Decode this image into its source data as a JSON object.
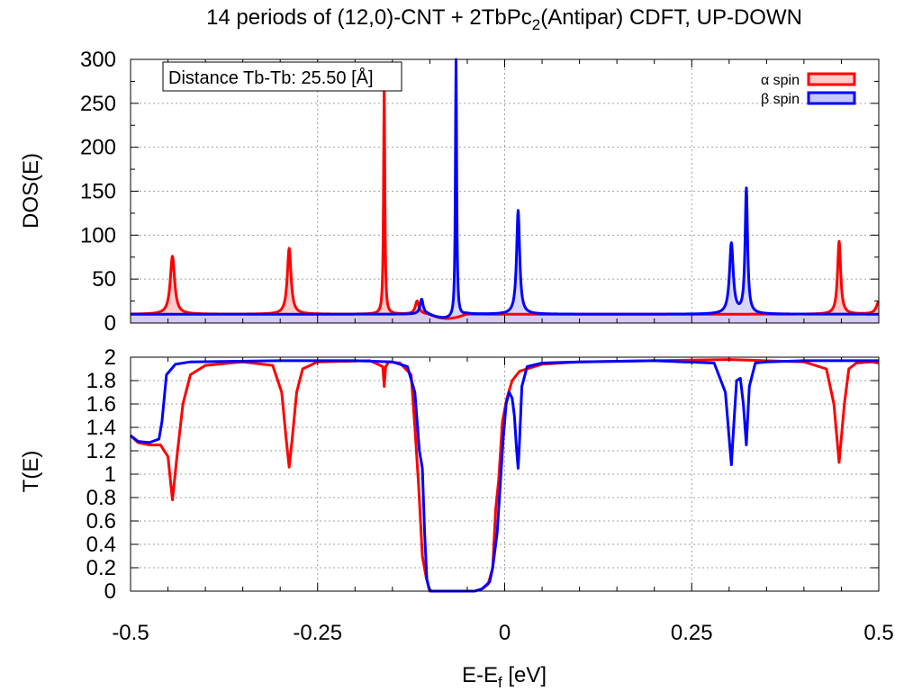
{
  "chart_data": [
    {
      "panel": "top",
      "type": "area",
      "title_parts": {
        "pre": "14 periods of (12,0)-CNT + 2TbPc",
        "sub": "2",
        "post": "(Antipar) CDFT, UP-DOWN"
      },
      "ylabel": "DOS(E)",
      "xlim": [
        -0.5,
        0.5
      ],
      "ylim": [
        0,
        300
      ],
      "yticks": [
        "0",
        "50",
        "100",
        "150",
        "200",
        "250",
        "300"
      ],
      "grid": true,
      "legend_position": "top-right",
      "annotation": "Distance Tb-Tb: 25.50 [Å]",
      "baseline": 10,
      "series": [
        {
          "name": "α spin",
          "color": "#ff0000",
          "fill": "#ffcccc",
          "peaks": [
            {
              "x": -0.444,
              "h": 66,
              "w": 0.0035
            },
            {
              "x": -0.288,
              "h": 75,
              "w": 0.003
            },
            {
              "x": -0.161,
              "h": 260,
              "w": 0.001
            },
            {
              "x": -0.117,
              "h": 15,
              "w": 0.003
            },
            {
              "x": 0.447,
              "h": 83,
              "w": 0.0025
            },
            {
              "x": 0.5,
              "h": 14,
              "w": 0.004
            }
          ],
          "gap": [
            -0.103,
            -0.02
          ]
        },
        {
          "name": "β spin",
          "color": "#0000ff",
          "fill": "#c8c8ff",
          "peaks": [
            {
              "x": -0.111,
              "h": 17,
              "w": 0.0025
            },
            {
              "x": -0.065,
              "h": 295,
              "w": 0.001
            },
            {
              "x": 0.018,
              "h": 118,
              "w": 0.0025
            },
            {
              "x": 0.303,
              "h": 80,
              "w": 0.003
            },
            {
              "x": 0.323,
              "h": 142,
              "w": 0.002
            }
          ],
          "gap": [
            -0.103,
            -0.02
          ]
        }
      ]
    },
    {
      "panel": "bottom",
      "type": "line",
      "ylabel": "T(E)",
      "xlabel_parts": {
        "pre": "E-E",
        "sub": "f",
        "post": " [eV]"
      },
      "xlim": [
        -0.5,
        0.5
      ],
      "ylim": [
        0,
        2
      ],
      "xticks": [
        "-0.5",
        "-0.25",
        "0",
        "0.25",
        "0.5"
      ],
      "yticks": [
        "0",
        "0.2",
        "0.4",
        "0.6",
        "0.8",
        "1",
        "1.2",
        "1.4",
        "1.6",
        "1.8",
        "2"
      ],
      "grid": true,
      "series": [
        {
          "name": "α spin",
          "color": "#ff0000",
          "x": [
            -0.5,
            -0.49,
            -0.475,
            -0.46,
            -0.45,
            -0.444,
            -0.438,
            -0.43,
            -0.42,
            -0.4,
            -0.35,
            -0.31,
            -0.298,
            -0.292,
            -0.288,
            -0.284,
            -0.278,
            -0.27,
            -0.25,
            -0.18,
            -0.163,
            -0.161,
            -0.159,
            -0.155,
            -0.14,
            -0.125,
            -0.12,
            -0.115,
            -0.11,
            -0.105,
            -0.1,
            -0.098,
            -0.09,
            -0.06,
            -0.04,
            -0.03,
            -0.022,
            -0.016,
            -0.012,
            -0.008,
            -0.003,
            0.003,
            0.01,
            0.02,
            0.05,
            0.1,
            0.2,
            0.3,
            0.4,
            0.43,
            0.44,
            0.447,
            0.454,
            0.46,
            0.47,
            0.49,
            0.5
          ],
          "y": [
            1.33,
            1.27,
            1.25,
            1.25,
            1.15,
            0.78,
            1.15,
            1.6,
            1.85,
            1.93,
            1.96,
            1.93,
            1.7,
            1.3,
            1.06,
            1.3,
            1.7,
            1.9,
            1.96,
            1.97,
            1.92,
            1.75,
            1.92,
            1.96,
            1.95,
            1.85,
            1.4,
            0.9,
            0.3,
            0.12,
            0.0,
            0.0,
            0.0,
            0.0,
            0.0,
            0.02,
            0.06,
            0.2,
            0.7,
            0.95,
            1.45,
            1.65,
            1.8,
            1.88,
            1.94,
            1.96,
            1.97,
            1.98,
            1.96,
            1.9,
            1.6,
            1.1,
            1.6,
            1.9,
            1.95,
            1.96,
            1.95
          ]
        },
        {
          "name": "β spin",
          "color": "#0000ff",
          "x": [
            -0.5,
            -0.49,
            -0.475,
            -0.462,
            -0.458,
            -0.452,
            -0.44,
            -0.42,
            -0.3,
            -0.2,
            -0.15,
            -0.13,
            -0.12,
            -0.114,
            -0.11,
            -0.107,
            -0.104,
            -0.101,
            -0.098,
            -0.09,
            -0.06,
            -0.04,
            -0.03,
            -0.02,
            -0.016,
            -0.01,
            -0.006,
            -0.002,
            0.002,
            0.006,
            0.01,
            0.013,
            0.016,
            0.018,
            0.02,
            0.023,
            0.03,
            0.05,
            0.1,
            0.2,
            0.28,
            0.295,
            0.303,
            0.306,
            0.31,
            0.315,
            0.319,
            0.323,
            0.327,
            0.335,
            0.35,
            0.4,
            0.5
          ],
          "y": [
            1.33,
            1.28,
            1.27,
            1.3,
            1.45,
            1.85,
            1.94,
            1.96,
            1.97,
            1.97,
            1.96,
            1.92,
            1.7,
            1.2,
            1.05,
            0.5,
            0.1,
            0.02,
            0.0,
            0.0,
            0.0,
            0.0,
            0.02,
            0.08,
            0.2,
            0.5,
            0.9,
            1.3,
            1.6,
            1.7,
            1.65,
            1.5,
            1.2,
            1.05,
            1.3,
            1.75,
            1.92,
            1.95,
            1.96,
            1.97,
            1.95,
            1.7,
            1.08,
            1.4,
            1.8,
            1.82,
            1.6,
            1.25,
            1.75,
            1.95,
            1.96,
            1.97,
            1.97
          ]
        }
      ]
    }
  ]
}
